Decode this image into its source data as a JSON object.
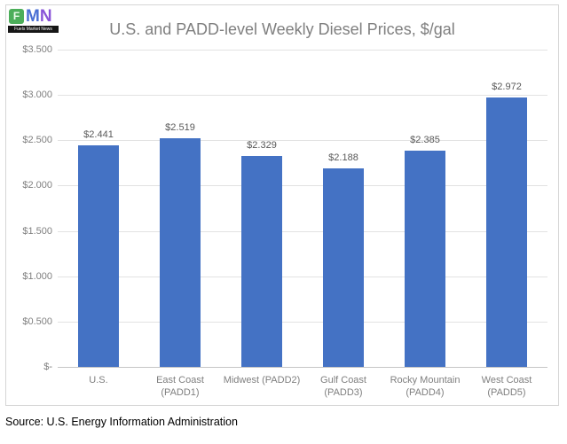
{
  "logo": {
    "letters": [
      "F",
      "M",
      "N"
    ],
    "caption": "Fuels Market News"
  },
  "source": "Source: U.S. Energy Information Administration",
  "chart_data": {
    "type": "bar",
    "title": "U.S. and PADD-level Weekly Diesel Prices, $/gal",
    "categories": [
      "U.S.",
      "East Coast (PADD1)",
      "Midwest (PADD2)",
      "Gulf Coast (PADD3)",
      "Rocky Mountain (PADD4)",
      "West Coast (PADD5)"
    ],
    "categories_lines": [
      [
        "U.S."
      ],
      [
        "East Coast",
        "(PADD1)"
      ],
      [
        "Midwest (PADD2)"
      ],
      [
        "Gulf Coast",
        "(PADD3)"
      ],
      [
        "Rocky Mountain",
        "(PADD4)"
      ],
      [
        "West Coast",
        "(PADD5)"
      ]
    ],
    "values": [
      2.441,
      2.519,
      2.329,
      2.188,
      2.385,
      2.972
    ],
    "data_labels": [
      "$2.441",
      "$2.519",
      "$2.329",
      "$2.188",
      "$2.385",
      "$2.972"
    ],
    "y_ticks": [
      "$3.500",
      "$3.000",
      "$2.500",
      "$2.000",
      "$1.500",
      "$1.000",
      "$0.500",
      "$-"
    ],
    "ylim": [
      0,
      3.5
    ],
    "xlabel": "",
    "ylabel": "",
    "bar_color": "#4472c4",
    "grid": true,
    "legend": false
  }
}
